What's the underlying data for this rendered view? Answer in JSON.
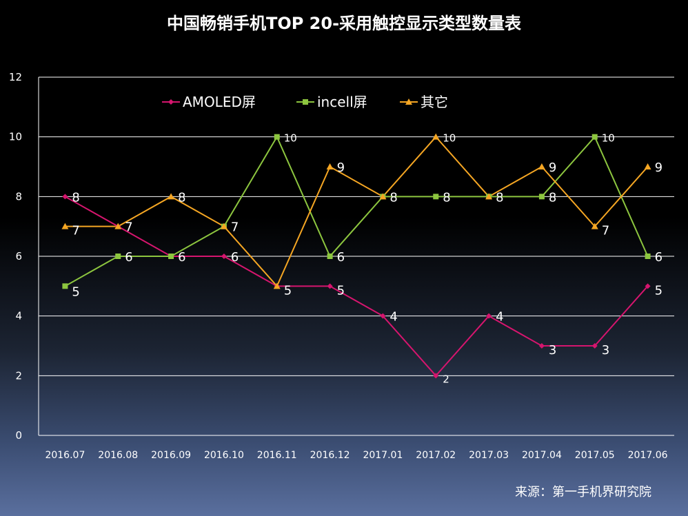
{
  "chart_data": {
    "type": "line",
    "title": "中国畅销手机TOP 20-采用触控显示类型数量表",
    "categories": [
      "2016.07",
      "2016.08",
      "2016.09",
      "2016.10",
      "2016.11",
      "2016.12",
      "2017.01",
      "2017.02",
      "2017.03",
      "2017.04",
      "2017.05",
      "2017.06"
    ],
    "ylim": [
      0,
      12
    ],
    "yticks": [
      0,
      2,
      4,
      6,
      8,
      10,
      12
    ],
    "grid": true,
    "legend_position": "top-left",
    "series": [
      {
        "name": "AMOLED屏",
        "color": "#d6156e",
        "marker": "diamond",
        "values": [
          8,
          7,
          6,
          6,
          5,
          5,
          4,
          2,
          4,
          3,
          3,
          5
        ]
      },
      {
        "name": "incell屏",
        "color": "#8dc63f",
        "marker": "square",
        "values": [
          5,
          6,
          6,
          7,
          10,
          6,
          8,
          8,
          8,
          8,
          10,
          6
        ]
      },
      {
        "name": "其它",
        "color": "#f5a623",
        "marker": "triangle",
        "values": [
          7,
          7,
          8,
          7,
          5,
          9,
          8,
          10,
          8,
          9,
          7,
          9
        ]
      }
    ],
    "source": "来源：第一手机界研究院"
  }
}
